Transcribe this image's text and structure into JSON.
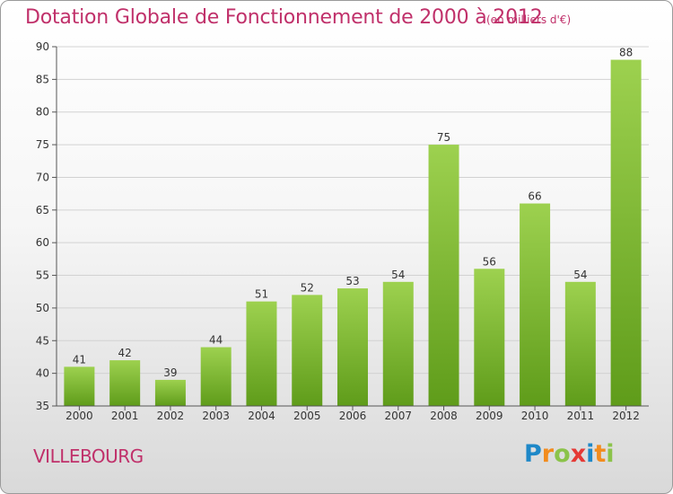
{
  "title": "Dotation Globale de Fonctionnement de 2000 à 2012",
  "subtitle": "(en milliers d'€)",
  "city": "VILLEBOURG",
  "logo": {
    "letters": [
      {
        "char": "P",
        "color": "#1e88c8"
      },
      {
        "char": "r",
        "color": "#f28c1e"
      },
      {
        "char": "o",
        "color": "#8bc34a"
      },
      {
        "char": "x",
        "color": "#e53935"
      },
      {
        "char": "i",
        "color": "#1e88c8"
      },
      {
        "char": "t",
        "color": "#f28c1e"
      },
      {
        "char": "i",
        "color": "#8bc34a"
      }
    ]
  },
  "colors": {
    "text_accent": "#c0306a",
    "bar_light": "#9dd14f",
    "bar_dark": "#5f9c1a",
    "grid": "#d2d2d2",
    "axis": "#555555"
  },
  "chart_data": {
    "type": "bar",
    "title": "Dotation Globale de Fonctionnement de 2000 à 2012",
    "subtitle": "(en milliers d'€)",
    "categories": [
      "2000",
      "2001",
      "2002",
      "2003",
      "2004",
      "2005",
      "2006",
      "2007",
      "2008",
      "2009",
      "2010",
      "2011",
      "2012"
    ],
    "values": [
      41,
      42,
      39,
      44,
      51,
      52,
      53,
      54,
      75,
      56,
      66,
      54,
      88
    ],
    "ylim": [
      35,
      90
    ],
    "yticks": [
      35,
      40,
      45,
      50,
      55,
      60,
      65,
      70,
      75,
      80,
      85,
      90
    ],
    "xlabel": "",
    "ylabel": "",
    "grid": true,
    "legend": "none"
  }
}
